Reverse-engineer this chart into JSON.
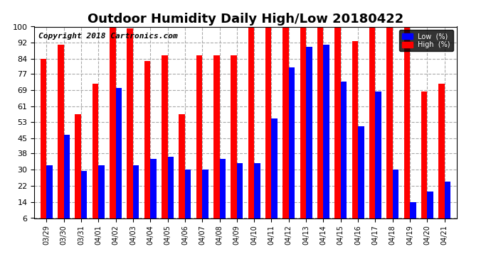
{
  "title": "Outdoor Humidity Daily High/Low 20180422",
  "copyright": "Copyright 2018 Cartronics.com",
  "legend_low": "Low  (%)",
  "legend_high": "High  (%)",
  "dates": [
    "03/29",
    "03/30",
    "03/31",
    "04/01",
    "04/02",
    "04/03",
    "04/04",
    "04/05",
    "04/06",
    "04/07",
    "04/08",
    "04/09",
    "04/10",
    "04/11",
    "04/12",
    "04/13",
    "04/14",
    "04/15",
    "04/16",
    "04/17",
    "04/18",
    "04/19",
    "04/20",
    "04/21"
  ],
  "high": [
    84,
    91,
    57,
    72,
    100,
    99,
    83,
    86,
    57,
    86,
    86,
    86,
    100,
    100,
    100,
    100,
    100,
    100,
    93,
    100,
    100,
    100,
    68,
    72
  ],
  "low": [
    32,
    47,
    29,
    32,
    70,
    32,
    35,
    36,
    30,
    30,
    35,
    33,
    33,
    55,
    80,
    90,
    91,
    73,
    51,
    68,
    30,
    14,
    19,
    24
  ],
  "ylim": [
    6,
    100
  ],
  "yticks": [
    6,
    14,
    22,
    30,
    38,
    45,
    53,
    61,
    69,
    77,
    84,
    92,
    100
  ],
  "bar_width": 0.35,
  "high_color": "#ff0000",
  "low_color": "#0000ff",
  "bg_color": "#ffffff",
  "grid_color": "#aaaaaa",
  "title_fontsize": 13,
  "copyright_fontsize": 8
}
